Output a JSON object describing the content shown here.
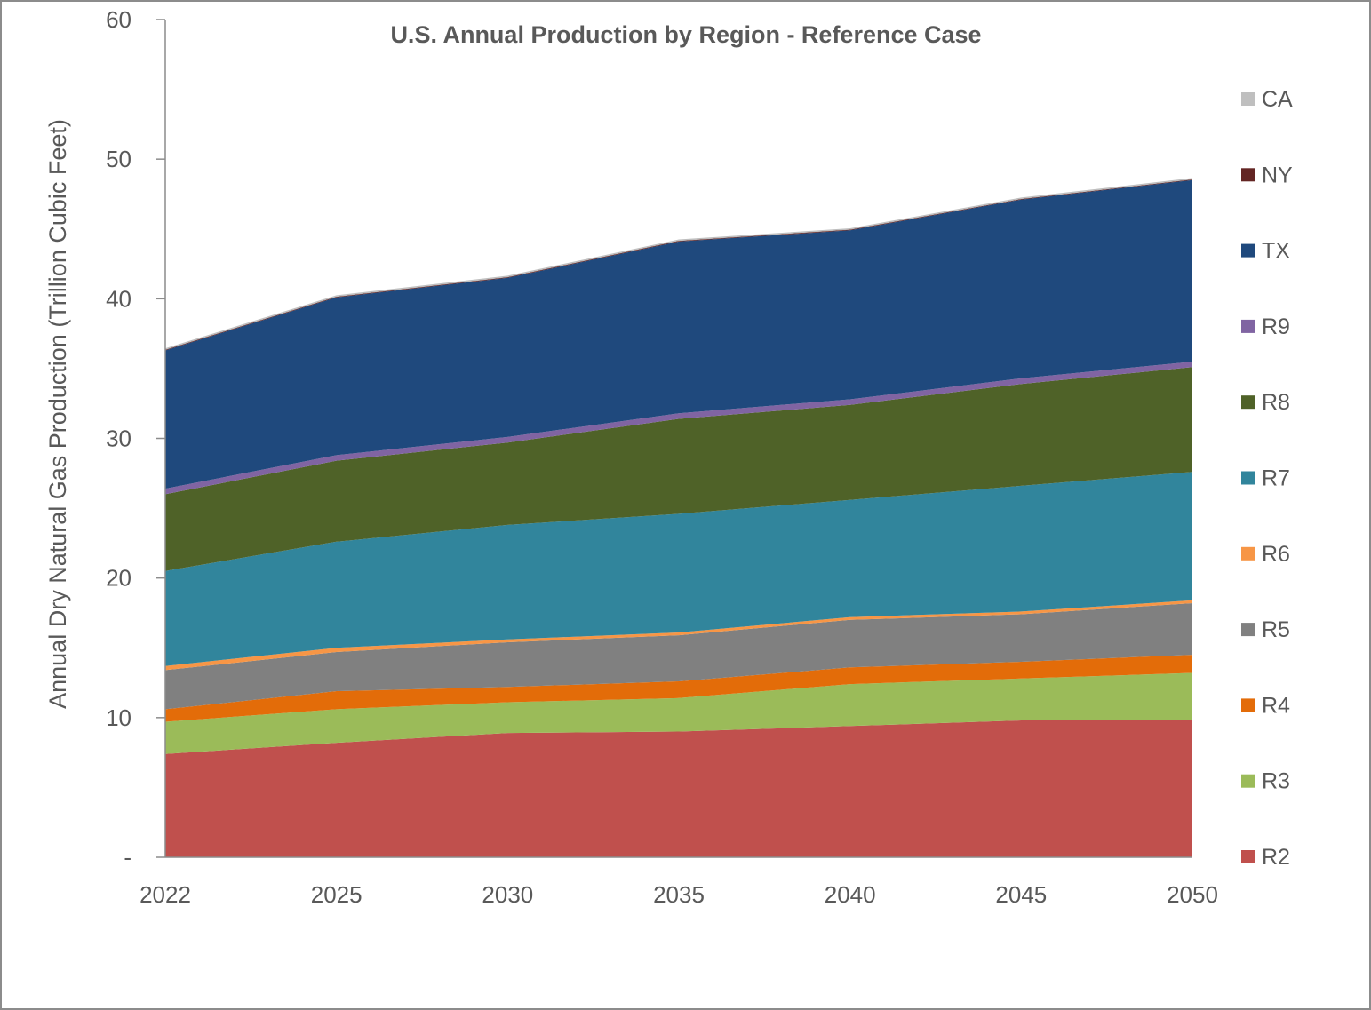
{
  "chart_data": {
    "type": "area",
    "stacked": true,
    "title": "U.S. Annual Production by Region - Reference Case",
    "xlabel": "",
    "ylabel": "Annual Dry Natural Gas Production (Trillion Cubic Feet)",
    "categories": [
      "2022",
      "2025",
      "2030",
      "2035",
      "2040",
      "2045",
      "2050"
    ],
    "ylim": [
      0,
      60
    ],
    "yticks": [
      0,
      10,
      20,
      30,
      40,
      50,
      60
    ],
    "ytick_labels": [
      "-",
      "10",
      "20",
      "30",
      "40",
      "50",
      "60"
    ],
    "legend_position": "right",
    "series": [
      {
        "name": "R2",
        "color": "#C0504D",
        "values": [
          7.4,
          8.2,
          8.9,
          9.0,
          9.4,
          9.8,
          9.8
        ]
      },
      {
        "name": "R3",
        "color": "#9BBB59",
        "values": [
          2.3,
          2.4,
          2.2,
          2.4,
          3.0,
          3.0,
          3.4
        ]
      },
      {
        "name": "R4",
        "color": "#E36C09",
        "values": [
          0.9,
          1.3,
          1.1,
          1.2,
          1.2,
          1.2,
          1.3
        ]
      },
      {
        "name": "R5",
        "color": "#808080",
        "values": [
          2.8,
          2.8,
          3.2,
          3.3,
          3.4,
          3.4,
          3.7
        ]
      },
      {
        "name": "R6",
        "color": "#F79646",
        "values": [
          0.3,
          0.3,
          0.2,
          0.2,
          0.2,
          0.2,
          0.2
        ]
      },
      {
        "name": "R7",
        "color": "#31859C",
        "values": [
          6.8,
          7.6,
          8.2,
          8.5,
          8.4,
          9.0,
          9.2
        ]
      },
      {
        "name": "R8",
        "color": "#4F6228",
        "values": [
          5.5,
          5.8,
          5.9,
          6.8,
          6.8,
          7.3,
          7.5
        ]
      },
      {
        "name": "R9",
        "color": "#8064A2",
        "values": [
          0.4,
          0.4,
          0.4,
          0.4,
          0.4,
          0.4,
          0.4
        ]
      },
      {
        "name": "TX",
        "color": "#1F497D",
        "values": [
          9.9,
          11.3,
          11.4,
          12.3,
          12.1,
          12.8,
          13.0
        ]
      },
      {
        "name": "NY",
        "color": "#632523",
        "values": [
          0.05,
          0.05,
          0.05,
          0.05,
          0.05,
          0.05,
          0.05
        ]
      },
      {
        "name": "CA",
        "color": "#BFBFBF",
        "values": [
          0.1,
          0.1,
          0.1,
          0.1,
          0.1,
          0.1,
          0.1
        ]
      }
    ],
    "legend_order": [
      "CA",
      "NY",
      "TX",
      "R9",
      "R8",
      "R7",
      "R6",
      "R5",
      "R4",
      "R3",
      "R2"
    ]
  }
}
